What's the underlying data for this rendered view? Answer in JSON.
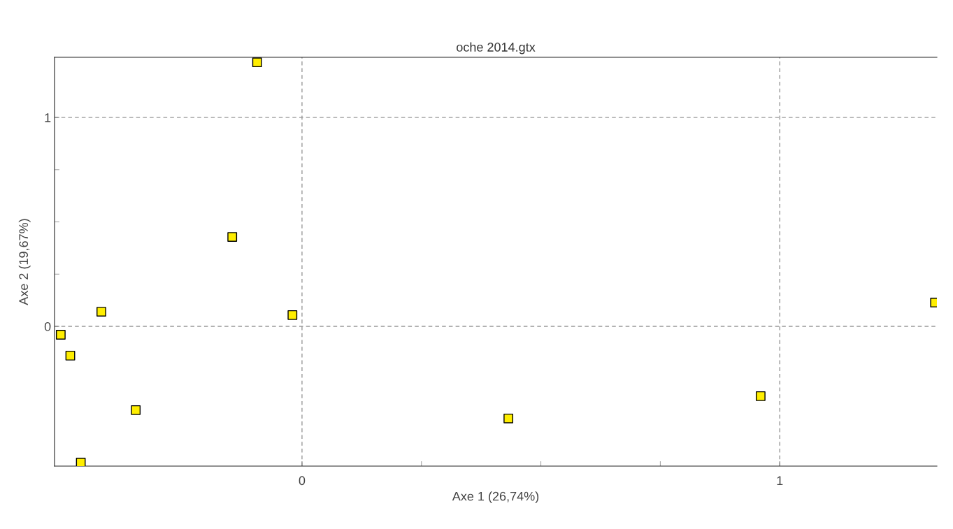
{
  "chart_data": {
    "type": "scatter",
    "title": "oche 2014.gtx",
    "xlabel": "Axe 1 (26,74%)",
    "ylabel": "Axe 2 (19,67%)",
    "x": [
      -0.094,
      -0.146,
      -0.42,
      -0.02,
      -0.505,
      -0.485,
      -0.348,
      -0.463,
      0.432,
      0.96,
      1.325
    ],
    "series": [
      {
        "color": "#ffee00",
        "values": [
          1.264,
          0.428,
          0.07,
          0.054,
          -0.04,
          -0.14,
          -0.401,
          -0.652,
          -0.441,
          -0.334,
          0.114
        ]
      }
    ],
    "marker": "square",
    "xlim": [
      -0.518,
      1.329
    ],
    "ylim": [
      -0.669,
      1.288
    ],
    "xticks": [
      0,
      {
        "value": 0.25,
        "label": null
      },
      {
        "value": 0.5,
        "label": null
      },
      {
        "value": 0.75,
        "label": null
      },
      1
    ],
    "yticks": [
      0,
      {
        "value": 0.25,
        "label": null
      },
      {
        "value": 0.5,
        "label": null
      },
      {
        "value": 0.75,
        "label": null
      },
      1
    ],
    "grid": true
  }
}
